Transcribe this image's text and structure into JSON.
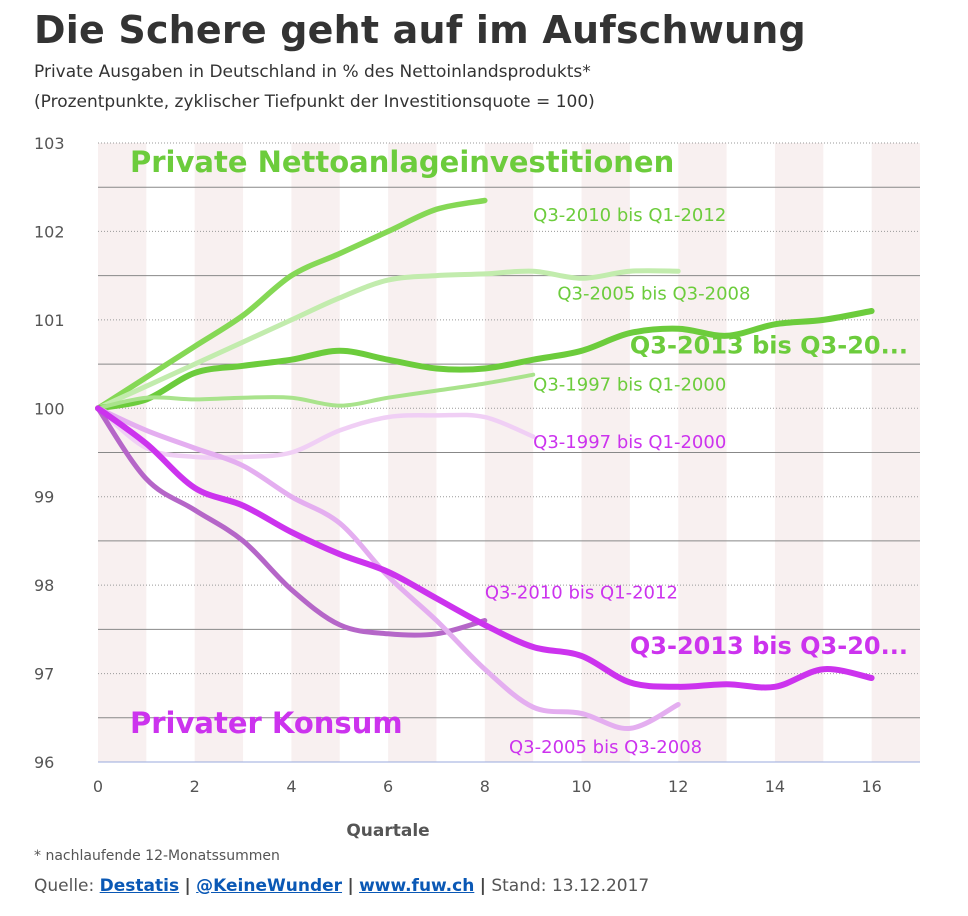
{
  "title": "Die Schere geht auf im Aufschwung",
  "subtitle": "Private Ausgaben in Deutschland in % des Nettoinlandsprodukts*",
  "subtitle2": "(Prozentpunkte, zyklischer Tiefpunkt der Investitionsquote = 100)",
  "footnote": "* nachlaufende 12-Monatssummen",
  "source": {
    "prefix": "Quelle:",
    "link1": "Destatis",
    "link2": "@KeineWunder",
    "link3": "www.fuw.ch",
    "sep": "|",
    "stand": "Stand: 13.12.2017"
  },
  "colors": {
    "green_strong": "#6ccc3c",
    "green_mid": "#85d855",
    "green_light": "#c2ecad",
    "green_lighter": "#a9e38c",
    "purple_strong": "#cc33ee",
    "purple_mid": "#b566c8",
    "purple_light": "#e4aef0",
    "purple_lighter": "#f0cff5",
    "stripe": "#f8f0f0",
    "grid_dark": "#888888",
    "grid_dot": "#999999"
  },
  "chart_data": {
    "type": "line",
    "title": "Die Schere geht auf im Aufschwung",
    "xlabel": "Quartale",
    "ylabel": "",
    "xlim": [
      0,
      17
    ],
    "ylim": [
      96,
      103
    ],
    "xticks": [
      0,
      2,
      4,
      6,
      8,
      10,
      12,
      14,
      16
    ],
    "yticks": [
      96,
      97,
      98,
      99,
      100,
      101,
      102,
      103
    ],
    "group_labels": {
      "invest": "Private Nettoanlageinvestitionen",
      "konsum": "Privater Konsum"
    },
    "series": [
      {
        "name": "Q3-2010 bis Q1-2012",
        "group": "invest",
        "color": "#85d855",
        "width": 5.5,
        "x": [
          0,
          1,
          2,
          3,
          4,
          5,
          6,
          7,
          8
        ],
        "values": [
          100.0,
          100.35,
          100.7,
          101.05,
          101.5,
          101.75,
          102.0,
          102.25,
          102.35
        ]
      },
      {
        "name": "Q3-2005 bis Q3-2008",
        "group": "invest",
        "color": "#c2ecad",
        "width": 5,
        "x": [
          0,
          1,
          2,
          3,
          4,
          5,
          6,
          7,
          8,
          9,
          10,
          11,
          12
        ],
        "values": [
          100.0,
          100.25,
          100.5,
          100.75,
          101.0,
          101.25,
          101.45,
          101.5,
          101.52,
          101.55,
          101.47,
          101.55,
          101.55
        ]
      },
      {
        "name": "Q3-2013 bis Q3-20...",
        "group": "invest",
        "color": "#6ccc3c",
        "width": 6,
        "emphasis": true,
        "x": [
          0,
          1,
          2,
          3,
          4,
          5,
          6,
          7,
          8,
          9,
          10,
          11,
          12,
          13,
          14,
          15,
          16
        ],
        "values": [
          100.0,
          100.1,
          100.4,
          100.48,
          100.55,
          100.65,
          100.55,
          100.45,
          100.45,
          100.55,
          100.65,
          100.85,
          100.9,
          100.82,
          100.95,
          101.0,
          101.1
        ]
      },
      {
        "name": "Q3-1997 bis Q1-2000",
        "group": "invest",
        "color": "#a9e38c",
        "width": 4,
        "x": [
          0,
          1,
          2,
          3,
          4,
          5,
          6,
          7,
          8,
          9
        ],
        "values": [
          100.0,
          100.12,
          100.1,
          100.12,
          100.12,
          100.03,
          100.12,
          100.2,
          100.28,
          100.38
        ]
      },
      {
        "name": "Q3-1997 bis Q1-2000",
        "group": "konsum",
        "color": "#f0cff5",
        "width": 4.5,
        "x": [
          0,
          1,
          2,
          3,
          4,
          5,
          6,
          7,
          8,
          9
        ],
        "values": [
          100.0,
          99.55,
          99.45,
          99.45,
          99.5,
          99.75,
          99.9,
          99.92,
          99.9,
          99.68
        ]
      },
      {
        "name": "Q3-2010 bis Q1-2012",
        "group": "konsum",
        "color": "#b566c8",
        "width": 5,
        "x": [
          0,
          1,
          2,
          3,
          4,
          5,
          6,
          7,
          8
        ],
        "values": [
          100.0,
          99.2,
          98.85,
          98.5,
          97.95,
          97.55,
          97.45,
          97.45,
          97.6
        ]
      },
      {
        "name": "Q3-2005 bis Q3-2008",
        "group": "konsum",
        "color": "#e4aef0",
        "width": 5,
        "x": [
          0,
          1,
          2,
          3,
          4,
          5,
          6,
          7,
          8,
          9,
          10,
          11,
          12
        ],
        "values": [
          100.0,
          99.75,
          99.55,
          99.35,
          99.0,
          98.7,
          98.1,
          97.6,
          97.05,
          96.62,
          96.55,
          96.38,
          96.65
        ]
      },
      {
        "name": "Q3-2013 bis Q3-20...",
        "group": "konsum",
        "color": "#cc33ee",
        "width": 6,
        "emphasis": true,
        "x": [
          0,
          1,
          2,
          3,
          4,
          5,
          6,
          7,
          8,
          9,
          10,
          11,
          12,
          13,
          14,
          15,
          16
        ],
        "values": [
          100.0,
          99.6,
          99.1,
          98.9,
          98.6,
          98.35,
          98.15,
          97.85,
          97.55,
          97.3,
          97.2,
          96.9,
          96.85,
          96.88,
          96.85,
          97.05,
          96.95
        ]
      }
    ],
    "annotations": [
      {
        "text": "Q3-2010 bis Q1-2012",
        "x": 9,
        "y": 102.12,
        "color": "#6ccc3c"
      },
      {
        "text": "Q3-2005 bis Q3-2008",
        "x": 9.5,
        "y": 101.23,
        "color": "#6ccc3c"
      },
      {
        "text": "Q3-2013 bis Q3-20...",
        "x": 11,
        "y": 100.62,
        "color": "#6ccc3c",
        "bold": true
      },
      {
        "text": "Q3-1997 bis Q1-2000",
        "x": 9,
        "y": 100.2,
        "color": "#6ccc3c"
      },
      {
        "text": "Q3-1997 bis Q1-2000",
        "x": 9,
        "y": 99.55,
        "color": "#cc33ee"
      },
      {
        "text": "Q3-2010 bis Q1-2012",
        "x": 8,
        "y": 97.85,
        "color": "#cc33ee"
      },
      {
        "text": "Q3-2013 bis Q3-20...",
        "x": 11,
        "y": 97.22,
        "color": "#cc33ee",
        "bold": true
      },
      {
        "text": "Q3-2005 bis Q3-2008",
        "x": 8.5,
        "y": 96.1,
        "color": "#cc33ee"
      }
    ]
  }
}
